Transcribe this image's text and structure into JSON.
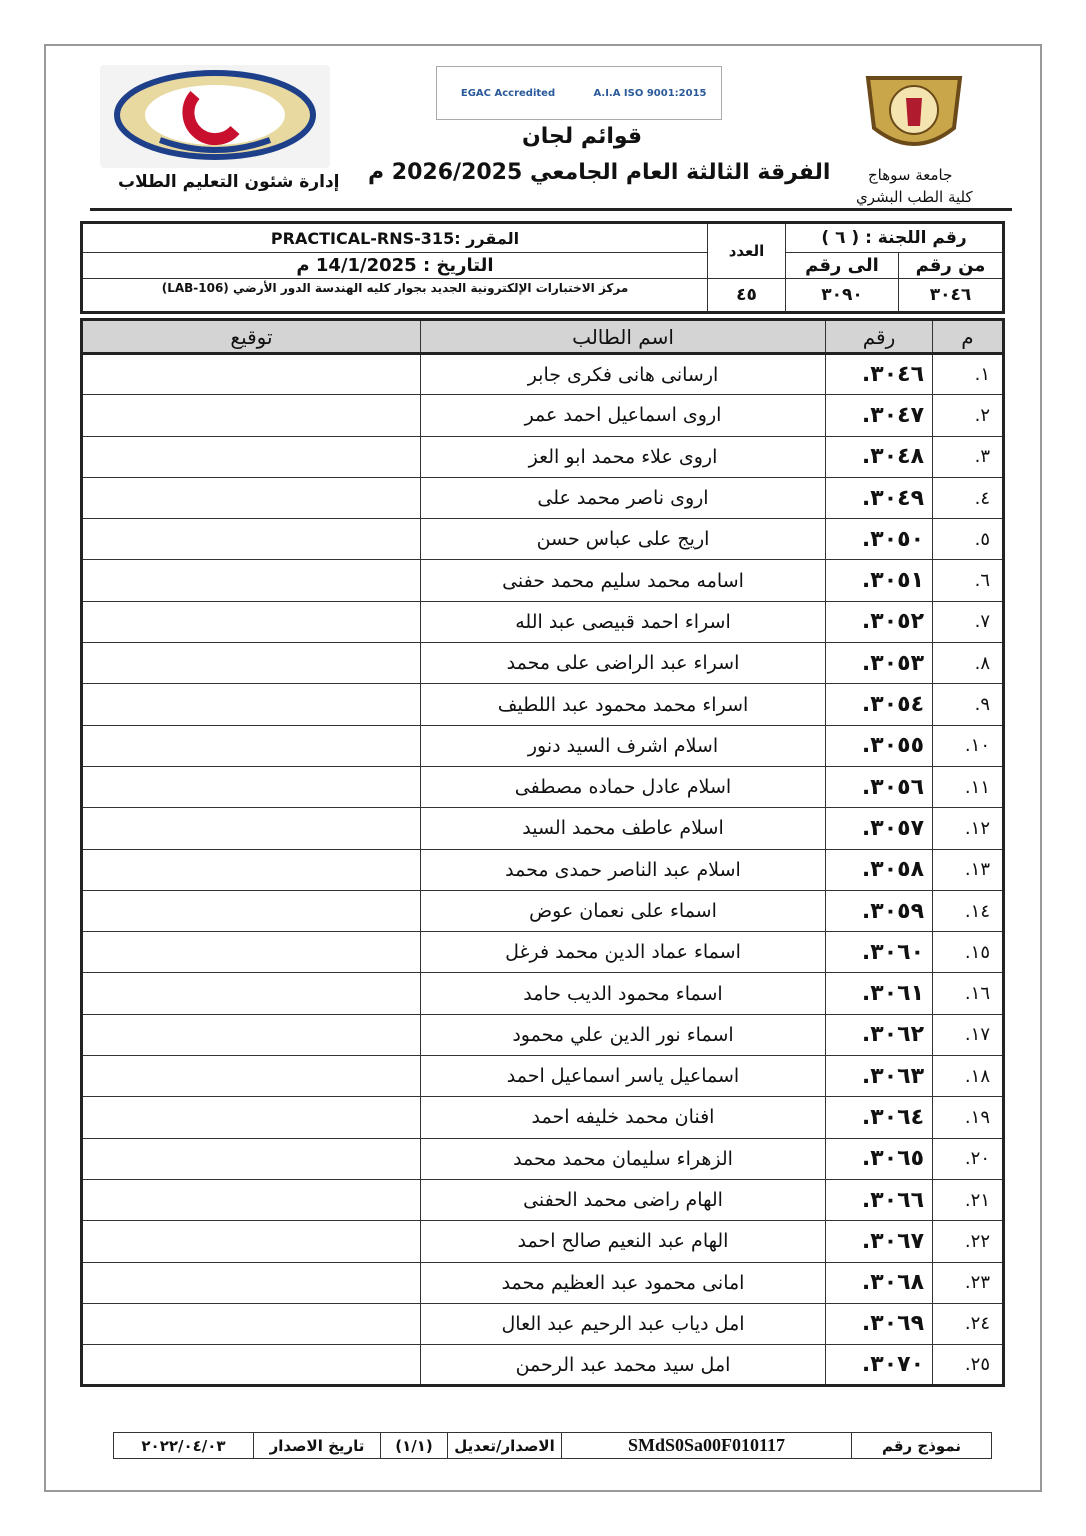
{
  "header": {
    "department": "إدارة شئون التعليم الطلاب",
    "title": "قوائم لجان",
    "subtitle": "الفرقة الثالثة العام الجامعي 2026/2025 م",
    "university": "جامعة سوهاج",
    "faculty": "كلية الطب البشري",
    "accreditation_left": "EGAC Accredited",
    "accreditation_right": "A.I.A ISO 9001:2015"
  },
  "info": {
    "course": "المقرر :PRACTICAL-RNS-315",
    "date": "التاريخ : 14/1/2025 م",
    "location": "مركز الاختبارات الإلكترونية الجديد بجوار كليه الهندسة الدور الأرضي (LAB-106)",
    "count_label": "العدد",
    "count": "٤٥",
    "committee": "رقم اللجنة : ( ٦ )",
    "from_label": "من رقم",
    "to_label": "الى رقم",
    "from": "٣٠٤٦",
    "to": "٣٠٩٠"
  },
  "table": {
    "headers": [
      "م",
      "رقم",
      "اسم الطالب",
      "توقيع"
    ],
    "rows": [
      [
        "١.",
        "٣٠٤٦.",
        "ارسانى هانى فكرى جابر"
      ],
      [
        "٢.",
        "٣٠٤٧.",
        "اروى اسماعيل احمد عمر"
      ],
      [
        "٣.",
        "٣٠٤٨.",
        "اروى علاء محمد ابو العز"
      ],
      [
        "٤.",
        "٣٠٤٩.",
        "اروى ناصر محمد على"
      ],
      [
        "٥.",
        "٣٠٥٠.",
        "اريج على عباس حسن"
      ],
      [
        "٦.",
        "٣٠٥١.",
        "اسامه محمد سليم محمد حفنى"
      ],
      [
        "٧.",
        "٣٠٥٢.",
        "اسراء احمد قبيصى عبد الله"
      ],
      [
        "٨.",
        "٣٠٥٣.",
        "اسراء عبد الراضى على محمد"
      ],
      [
        "٩.",
        "٣٠٥٤.",
        "اسراء محمد محمود عبد اللطيف"
      ],
      [
        "١٠.",
        "٣٠٥٥.",
        "اسلام اشرف السيد دنور"
      ],
      [
        "١١.",
        "٣٠٥٦.",
        "اسلام عادل حماده مصطفى"
      ],
      [
        "١٢.",
        "٣٠٥٧.",
        "اسلام عاطف محمد السيد"
      ],
      [
        "١٣.",
        "٣٠٥٨.",
        "اسلام عبد الناصر حمدى محمد"
      ],
      [
        "١٤.",
        "٣٠٥٩.",
        "اسماء على نعمان عوض"
      ],
      [
        "١٥.",
        "٣٠٦٠.",
        "اسماء عماد الدين محمد فرغل"
      ],
      [
        "١٦.",
        "٣٠٦١.",
        "اسماء محمود الديب حامد"
      ],
      [
        "١٧.",
        "٣٠٦٢.",
        "اسماء نور الدين علي محمود"
      ],
      [
        "١٨.",
        "٣٠٦٣.",
        "اسماعيل ياسر اسماعيل احمد"
      ],
      [
        "١٩.",
        "٣٠٦٤.",
        "افنان محمد خليفه احمد"
      ],
      [
        "٢٠.",
        "٣٠٦٥.",
        "الزهراء سليمان محمد محمد"
      ],
      [
        "٢١.",
        "٣٠٦٦.",
        "الهام راضى محمد الحفنى"
      ],
      [
        "٢٢.",
        "٣٠٦٧.",
        "الهام عبد النعيم صالح احمد"
      ],
      [
        "٢٣.",
        "٣٠٦٨.",
        "امانى محمود عبد العظيم محمد"
      ],
      [
        "٢٤.",
        "٣٠٦٩.",
        "امل دياب عبد الرحيم عبد العال"
      ],
      [
        "٢٥.",
        "٣٠٧٠.",
        "امل سيد محمد عبد الرحمن"
      ]
    ]
  },
  "footer": {
    "form_label": "نموذج رقم",
    "form_code": "SMdS0Sa00F010117",
    "version_label": "الاصدار/تعديل",
    "version": "(١/١)",
    "issue_label": "تاريخ الاصدار",
    "issue_date": "٢٠٢٢/٠٤/٠٣"
  }
}
